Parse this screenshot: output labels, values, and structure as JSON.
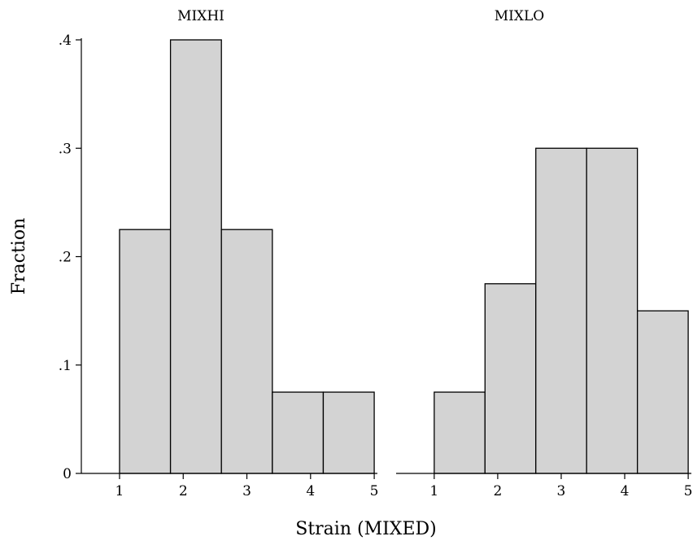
{
  "chart_data": {
    "type": "bar",
    "ylabel": "Fraction",
    "xlabel": "Strain (MIXED)",
    "ylim": [
      0,
      0.4
    ],
    "y_ticks": [
      0,
      0.1,
      0.2,
      0.3,
      0.4
    ],
    "y_tick_labels": [
      "0",
      ".1",
      ".2",
      ".3",
      ".4"
    ],
    "x_ticks": [
      1,
      2,
      3,
      4,
      5
    ],
    "x_tick_labels": [
      "1",
      "2",
      "3",
      "4",
      "5"
    ],
    "xlim": [
      0.4,
      5.05
    ],
    "grid": false,
    "panels": [
      {
        "title": "MIXHI",
        "bins": [
          {
            "x0": 1.0,
            "x1": 1.8,
            "value": 0.225
          },
          {
            "x0": 1.8,
            "x1": 2.6,
            "value": 0.4
          },
          {
            "x0": 2.6,
            "x1": 3.4,
            "value": 0.225
          },
          {
            "x0": 3.4,
            "x1": 4.2,
            "value": 0.075
          },
          {
            "x0": 4.2,
            "x1": 5.0,
            "value": 0.075
          }
        ]
      },
      {
        "title": "MIXLO",
        "bins": [
          {
            "x0": 1.0,
            "x1": 1.8,
            "value": 0.075
          },
          {
            "x0": 1.8,
            "x1": 2.6,
            "value": 0.175
          },
          {
            "x0": 2.6,
            "x1": 3.4,
            "value": 0.3
          },
          {
            "x0": 3.4,
            "x1": 4.2,
            "value": 0.3
          },
          {
            "x0": 4.2,
            "x1": 5.0,
            "value": 0.15
          }
        ]
      }
    ]
  }
}
